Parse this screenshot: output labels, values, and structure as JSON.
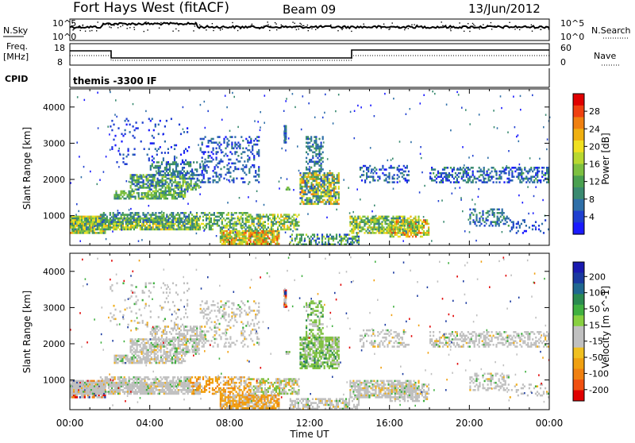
{
  "header": {
    "station": "Fort Hays West (fitACF)",
    "beam": "Beam 09",
    "date": "13/Jun/2012"
  },
  "panels": {
    "nsky": {
      "label": "N.Sky",
      "ticks": [
        "10^5",
        "10^0"
      ],
      "right_label": "N.Search",
      "right_ticks": [
        "10^5",
        "10^0"
      ]
    },
    "freq": {
      "label_top": "Freq.",
      "label_unit": "[MHz]",
      "ticks": [
        "18",
        "8"
      ],
      "right_label": "Nave",
      "right_ticks": [
        "60",
        "0"
      ]
    },
    "cpid": {
      "label": "CPID",
      "program": "themis -3300 IF"
    }
  },
  "chart_data": [
    {
      "type": "heatmap",
      "name": "power",
      "ylabel": "Slant Range [km]",
      "xlabel": "",
      "x_ticks": [
        "00:00",
        "04:00",
        "08:00",
        "12:00",
        "16:00",
        "20:00",
        "00:00"
      ],
      "y_ticks": [
        "1000",
        "2000",
        "3000",
        "4000"
      ],
      "ylim": [
        180,
        4500
      ],
      "xlim_hours": [
        0,
        24
      ],
      "colorbar": {
        "label": "Power [dB]",
        "ticks": [
          "4",
          "8",
          "12",
          "16",
          "20",
          "24",
          "28"
        ],
        "colors": [
          "#1a1aff",
          "#1f3fd0",
          "#2f6fa8",
          "#3a8a70",
          "#4aa050",
          "#7dc040",
          "#b8d830",
          "#f0e020",
          "#f0b010",
          "#f08010",
          "#f04010",
          "#e00000"
        ]
      }
    },
    {
      "type": "heatmap",
      "name": "velocity",
      "ylabel": "Slant Range [km]",
      "xlabel": "Time UT",
      "x_ticks": [
        "00:00",
        "04:00",
        "08:00",
        "12:00",
        "16:00",
        "20:00",
        "00:00"
      ],
      "y_ticks": [
        "1000",
        "2000",
        "3000",
        "4000"
      ],
      "ylim": [
        180,
        4500
      ],
      "xlim_hours": [
        0,
        24
      ],
      "colorbar": {
        "label": "Velocity [m s^-1]",
        "ticks": [
          "200",
          "100",
          "50",
          "15",
          "-15",
          "-50",
          "-100",
          "-200"
        ],
        "colors": [
          "#1a1ab0",
          "#1a3aa0",
          "#206890",
          "#2a8a50",
          "#40b040",
          "#88d040",
          "#c0c0c0",
          "#c0c0c0",
          "#f0c020",
          "#f0a010",
          "#f08010",
          "#f05010",
          "#e00000"
        ]
      }
    }
  ]
}
